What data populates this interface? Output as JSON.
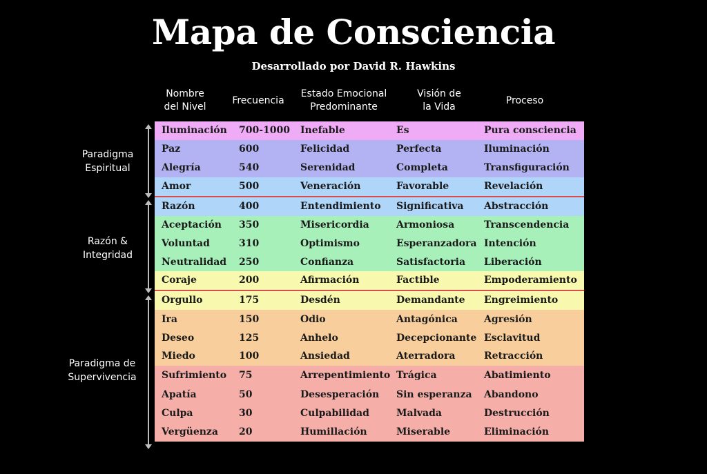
{
  "title": "Mapa de Consciencia",
  "subtitle": "Desarrollado por David R. Hawkins",
  "headers": {
    "nivel": [
      "Nombre",
      "del Nivel"
    ],
    "frecuencia": [
      "Frecuencia"
    ],
    "estado": [
      "Estado Emocional",
      "Predominante"
    ],
    "vision": [
      "Visión de",
      "la Vida"
    ],
    "proceso": [
      "Proceso"
    ]
  },
  "paradigms": {
    "espiritual": [
      "Paradigma",
      "Espiritual"
    ],
    "razon": [
      "Razón &",
      "Integridad"
    ],
    "supervivencia": [
      "Paradigma de",
      "Supervivencia"
    ]
  },
  "colors": {
    "pink": "#f0abf7",
    "lavender": "#b3b3f3",
    "blue": "#afd6f9",
    "green": "#a8f0ba",
    "yellow": "#f8f8ae",
    "orange": "#f8cf9c",
    "red": "#f5afa8"
  },
  "rows": [
    {
      "nivel": "Iluminación",
      "frecuencia": "700-1000",
      "estado": "Inefable",
      "vision": "Es",
      "proceso": "Pura consciencia"
    },
    {
      "nivel": "Paz",
      "frecuencia": "600",
      "estado": "Felicidad",
      "vision": "Perfecta",
      "proceso": "Iluminación"
    },
    {
      "nivel": "Alegría",
      "frecuencia": "540",
      "estado": "Serenidad",
      "vision": "Completa",
      "proceso": "Transfiguración"
    },
    {
      "nivel": "Amor",
      "frecuencia": "500",
      "estado": "Veneración",
      "vision": "Favorable",
      "proceso": "Revelación"
    },
    {
      "nivel": "Razón",
      "frecuencia": "400",
      "estado": "Entendimiento",
      "vision": "Significativa",
      "proceso": "Abstracción"
    },
    {
      "nivel": "Aceptación",
      "frecuencia": "350",
      "estado": "Misericordia",
      "vision": "Armoniosa",
      "proceso": "Transcendencia"
    },
    {
      "nivel": "Voluntad",
      "frecuencia": "310",
      "estado": "Optimismo",
      "vision": "Esperanzadora",
      "proceso": "Intención"
    },
    {
      "nivel": "Neutralidad",
      "frecuencia": "250",
      "estado": "Confianza",
      "vision": "Satisfactoria",
      "proceso": "Liberación"
    },
    {
      "nivel": "Coraje",
      "frecuencia": "200",
      "estado": "Afirmación",
      "vision": "Factible",
      "proceso": "Empoderamiento"
    },
    {
      "nivel": "Orgullo",
      "frecuencia": "175",
      "estado": "Desdén",
      "vision": "Demandante",
      "proceso": "Engreimiento"
    },
    {
      "nivel": "Ira",
      "frecuencia": "150",
      "estado": "Odio",
      "vision": "Antagónica",
      "proceso": "Agresión"
    },
    {
      "nivel": "Deseo",
      "frecuencia": "125",
      "estado": "Anhelo",
      "vision": "Decepcionante",
      "proceso": "Esclavitud"
    },
    {
      "nivel": "Miedo",
      "frecuencia": "100",
      "estado": "Ansiedad",
      "vision": "Aterradora",
      "proceso": "Retracción"
    },
    {
      "nivel": "Sufrimiento",
      "frecuencia": "75",
      "estado": "Arrepentimiento",
      "vision": "Trágica",
      "proceso": "Abatimiento"
    },
    {
      "nivel": "Apatía",
      "frecuencia": "50",
      "estado": "Desesperación",
      "vision": "Sin esperanza",
      "proceso": "Abandono"
    },
    {
      "nivel": "Culpa",
      "frecuencia": "30",
      "estado": "Culpabilidad",
      "vision": "Malvada",
      "proceso": "Destrucción"
    },
    {
      "nivel": "Vergüenza",
      "frecuencia": "20",
      "estado": "Humillación",
      "vision": "Miserable",
      "proceso": "Eliminación"
    }
  ]
}
